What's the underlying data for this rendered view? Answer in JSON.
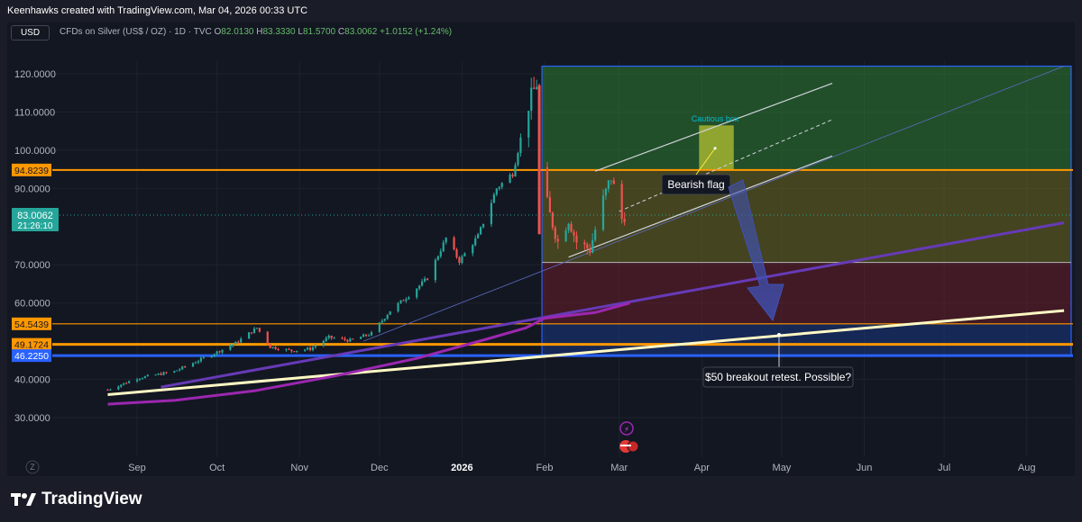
{
  "caption": "Keenhawks created with TradingView.com, Mar 04, 2026 00:33 UTC",
  "currency_button": "USD",
  "legend": {
    "symbol": "CFDs on Silver (US$ / OZ) · 1D · TVC",
    "open_label": "O",
    "open": "82.0130",
    "high_label": "H",
    "high": "83.3330",
    "low_label": "L",
    "low": "81.5700",
    "close_label": "C",
    "close": "83.0062",
    "change": "+1.0152 (+1.24%)"
  },
  "brand": "TradingView",
  "colors": {
    "background": "#131722",
    "up": "#26a69a",
    "down": "#ef5350",
    "orange": "#ff9800",
    "blue": "#2962ff",
    "purple_ma": "#9c27b0",
    "violet_trend": "#673ab7",
    "white_trend": "#fff9c4"
  },
  "chart_data": {
    "type": "candlestick",
    "timeframe": "1D",
    "x_ticks": [
      {
        "label": "Sep",
        "date": "2025-09-01"
      },
      {
        "label": "Oct",
        "date": "2025-10-01"
      },
      {
        "label": "Nov",
        "date": "2025-11-01"
      },
      {
        "label": "Dec",
        "date": "2025-12-01"
      },
      {
        "label": "2026",
        "date": "2026-01-01",
        "bold": true
      },
      {
        "label": "Feb",
        "date": "2026-02-01"
      },
      {
        "label": "Mar",
        "date": "2026-03-01"
      },
      {
        "label": "Apr",
        "date": "2026-04-01"
      },
      {
        "label": "May",
        "date": "2026-05-01"
      },
      {
        "label": "Jun",
        "date": "2026-06-01"
      },
      {
        "label": "Jul",
        "date": "2026-07-01"
      },
      {
        "label": "Aug",
        "date": "2026-08-01"
      }
    ],
    "y_ticks": [
      "120.0000",
      "110.0000",
      "100.0000",
      "90.0000",
      "70.0000",
      "60.0000",
      "40.0000",
      "30.0000"
    ],
    "y_range": [
      25,
      125
    ],
    "price_labels": [
      {
        "text": "94.8239",
        "value": 94.8239,
        "color": "#ff9800"
      },
      {
        "text": "54.5439",
        "value": 54.5439,
        "color": "#ff9800"
      },
      {
        "text": "49.1724",
        "value": 49.1724,
        "color": "#ff9800"
      },
      {
        "text": "46.2250",
        "value": 46.225,
        "color": "#2962ff"
      }
    ],
    "last_price": {
      "value": "83.0062",
      "countdown": "21:26:10"
    },
    "series": [
      {
        "name": "close",
        "points": [
          [
            "2025-08-21",
            37.3
          ],
          [
            "2025-09-01",
            40.3
          ],
          [
            "2025-09-15",
            42.1
          ],
          [
            "2025-09-29",
            46.5
          ],
          [
            "2025-10-08",
            49.5
          ],
          [
            "2025-10-16",
            53.5
          ],
          [
            "2025-10-21",
            48.5
          ],
          [
            "2025-10-29",
            47.5
          ],
          [
            "2025-11-05",
            48.0
          ],
          [
            "2025-11-12",
            51.0
          ],
          [
            "2025-11-20",
            50.2
          ],
          [
            "2025-11-28",
            52.0
          ],
          [
            "2025-12-05",
            58.0
          ],
          [
            "2025-12-12",
            62.0
          ],
          [
            "2025-12-19",
            66.5
          ],
          [
            "2025-12-26",
            77.0
          ],
          [
            "2025-12-31",
            71.0
          ],
          [
            "2026-01-07",
            77.5
          ],
          [
            "2026-01-14",
            90.0
          ],
          [
            "2026-01-20",
            94.0
          ],
          [
            "2026-01-26",
            112.0
          ],
          [
            "2026-01-29",
            117.5
          ],
          [
            "2026-01-30",
            95.0
          ],
          [
            "2026-02-03",
            83.0
          ],
          [
            "2026-02-06",
            76.0
          ],
          [
            "2026-02-10",
            82.0
          ],
          [
            "2026-02-13",
            76.0
          ],
          [
            "2026-02-18",
            74.0
          ],
          [
            "2026-02-23",
            87.0
          ],
          [
            "2026-02-26",
            93.0
          ],
          [
            "2026-03-02",
            82.0
          ],
          [
            "2026-03-03",
            83.0
          ]
        ]
      },
      {
        "name": "long_ma",
        "points": [
          [
            "2025-08-21",
            33.5
          ],
          [
            "2025-09-15",
            34.5
          ],
          [
            "2025-10-15",
            37.0
          ],
          [
            "2025-11-15",
            41.0
          ],
          [
            "2025-12-15",
            45.5
          ],
          [
            "2026-01-10",
            50.5
          ],
          [
            "2026-01-25",
            53.5
          ],
          [
            "2026-02-01",
            56.0
          ],
          [
            "2026-02-20",
            57.5
          ],
          [
            "2026-03-05",
            60.0
          ]
        ]
      }
    ],
    "annotations": [
      {
        "type": "text",
        "text": "Bearish flag"
      },
      {
        "type": "text",
        "text": "Cautious box"
      },
      {
        "type": "text",
        "text": "$50 breakout retest. Possible?"
      }
    ]
  }
}
